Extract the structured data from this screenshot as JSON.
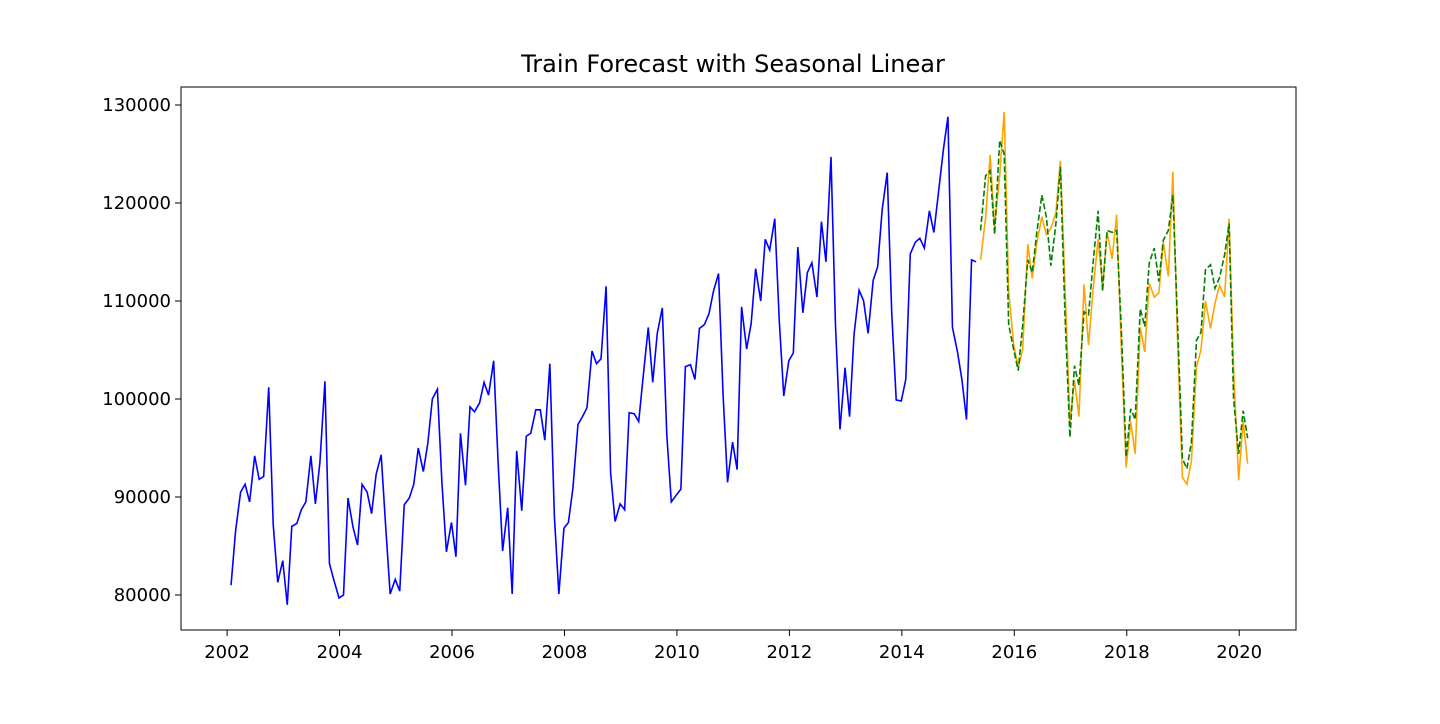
{
  "chart_data": {
    "type": "line",
    "title": "Train Forecast with Seasonal Linear",
    "xlim": [
      2001.18,
      2021.01
    ],
    "xticks": [
      2002,
      2004,
      2006,
      2008,
      2010,
      2012,
      2014,
      2016,
      2018,
      2020
    ],
    "ylim": [
      76429,
      131837
    ],
    "yticks": [
      80000,
      90000,
      100000,
      110000,
      120000,
      130000
    ],
    "series": [
      {
        "color": "#0000ff",
        "linestyle": "solid",
        "x": [
          2002.07,
          2002.15,
          2002.24,
          2002.32,
          2002.4,
          2002.49,
          2002.57,
          2002.65,
          2002.74,
          2002.82,
          2002.9,
          2002.99,
          2003.07,
          2003.15,
          2003.24,
          2003.32,
          2003.4,
          2003.49,
          2003.57,
          2003.65,
          2003.74,
          2003.82,
          2003.9,
          2003.99,
          2004.07,
          2004.15,
          2004.24,
          2004.32,
          2004.4,
          2004.49,
          2004.57,
          2004.65,
          2004.74,
          2004.82,
          2004.9,
          2004.99,
          2005.07,
          2005.15,
          2005.24,
          2005.32,
          2005.4,
          2005.49,
          2005.57,
          2005.65,
          2005.74,
          2005.82,
          2005.9,
          2005.99,
          2006.07,
          2006.15,
          2006.24,
          2006.32,
          2006.4,
          2006.49,
          2006.57,
          2006.65,
          2006.74,
          2006.82,
          2006.9,
          2006.99,
          2007.07,
          2007.15,
          2007.24,
          2007.32,
          2007.4,
          2007.49,
          2007.57,
          2007.65,
          2007.74,
          2007.82,
          2007.9,
          2007.99,
          2008.07,
          2008.15,
          2008.24,
          2008.32,
          2008.4,
          2008.49,
          2008.57,
          2008.65,
          2008.74,
          2008.82,
          2008.9,
          2008.99,
          2009.07,
          2009.15,
          2009.24,
          2009.32,
          2009.4,
          2009.49,
          2009.57,
          2009.65,
          2009.74,
          2009.82,
          2009.9,
          2009.99,
          2010.07,
          2010.15,
          2010.24,
          2010.32,
          2010.4,
          2010.49,
          2010.57,
          2010.65,
          2010.74,
          2010.82,
          2010.9,
          2010.99,
          2011.07,
          2011.15,
          2011.24,
          2011.32,
          2011.4,
          2011.49,
          2011.57,
          2011.65,
          2011.74,
          2011.82,
          2011.9,
          2011.99,
          2012.07,
          2012.15,
          2012.24,
          2012.32,
          2012.4,
          2012.49,
          2012.57,
          2012.65,
          2012.74,
          2012.82,
          2012.9,
          2012.99,
          2013.07,
          2013.15,
          2013.24,
          2013.32,
          2013.4,
          2013.49,
          2013.57,
          2013.65,
          2013.74,
          2013.82,
          2013.9,
          2013.99,
          2014.07,
          2014.15,
          2014.24,
          2014.32,
          2014.4,
          2014.49,
          2014.57,
          2014.65,
          2014.74,
          2014.82,
          2014.9,
          2014.99,
          2015.07,
          2015.15,
          2015.24,
          2015.32
        ],
        "values": [
          81000,
          86500,
          90500,
          91300,
          89500,
          94200,
          91800,
          92100,
          101200,
          87200,
          81300,
          83500,
          79000,
          87000,
          87300,
          88700,
          89500,
          94200,
          89300,
          93500,
          101800,
          83200,
          81500,
          79700,
          80000,
          89900,
          86900,
          85100,
          91300,
          90500,
          88300,
          92300,
          94300,
          87000,
          80100,
          81600,
          80400,
          89200,
          89900,
          91300,
          95000,
          92600,
          95500,
          100000,
          101000,
          91500,
          84400,
          87400,
          83900,
          96500,
          91200,
          99200,
          98700,
          99600,
          101700,
          100400,
          103900,
          93500,
          84500,
          88900,
          80100,
          94700,
          88600,
          96200,
          96500,
          98900,
          98900,
          95800,
          103600,
          88100,
          80100,
          86800,
          87400,
          90900,
          97400,
          98200,
          99100,
          104900,
          103600,
          104100,
          111500,
          92500,
          87500,
          89300,
          88700,
          98600,
          98500,
          97700,
          102300,
          107300,
          101700,
          106700,
          109300,
          96300,
          89500,
          90200,
          90800,
          103300,
          103500,
          102000,
          107200,
          107600,
          108700,
          111000,
          112800,
          100500,
          91500,
          95600,
          92800,
          109400,
          105100,
          107700,
          113300,
          110000,
          116300,
          115200,
          118400,
          108000,
          100300,
          103900,
          104700,
          115500,
          108800,
          112900,
          113900,
          110400,
          118100,
          114000,
          124700,
          107500,
          96900,
          103200,
          98200,
          106600,
          111100,
          110000,
          106700,
          112100,
          113500,
          119300,
          123100,
          108800,
          99900,
          99800,
          102000,
          114800,
          116000,
          116400,
          115400,
          119200,
          117000,
          121000,
          125500,
          128800,
          107300,
          104800,
          101900,
          97900,
          114200,
          114000
        ]
      },
      {
        "color": "#ffa500",
        "linestyle": "solid",
        "x": [
          2015.4,
          2015.49,
          2015.57,
          2015.65,
          2015.74,
          2015.82,
          2015.9,
          2015.99,
          2016.07,
          2016.15,
          2016.24,
          2016.32,
          2016.4,
          2016.49,
          2016.57,
          2016.65,
          2016.74,
          2016.82,
          2016.9,
          2016.99,
          2017.07,
          2017.15,
          2017.24,
          2017.32,
          2017.4,
          2017.49,
          2017.57,
          2017.65,
          2017.74,
          2017.82,
          2017.9,
          2017.99,
          2018.07,
          2018.15,
          2018.24,
          2018.32,
          2018.4,
          2018.49,
          2018.57,
          2018.65,
          2018.74,
          2018.82,
          2018.9,
          2018.99,
          2019.07,
          2019.15,
          2019.24,
          2019.32,
          2019.4,
          2019.49,
          2019.57,
          2019.65,
          2019.74,
          2019.82,
          2019.9,
          2019.99,
          2020.07,
          2020.15
        ],
        "values": [
          114200,
          118500,
          124900,
          117500,
          122800,
          129300,
          111000,
          105500,
          103200,
          105100,
          115800,
          112300,
          115900,
          118600,
          116800,
          117400,
          119000,
          124300,
          111700,
          97600,
          101900,
          98200,
          111700,
          105500,
          111100,
          116300,
          111500,
          117000,
          114300,
          118800,
          105700,
          93000,
          97700,
          94400,
          107300,
          104800,
          111800,
          110400,
          110800,
          116000,
          112500,
          123200,
          106600,
          92000,
          91300,
          93700,
          103300,
          105000,
          110000,
          107200,
          109800,
          111600,
          110400,
          118400,
          103000,
          91700,
          97800,
          93400
        ]
      },
      {
        "color": "#008000",
        "linestyle": "dashed",
        "x": [
          2015.4,
          2015.49,
          2015.57,
          2015.65,
          2015.74,
          2015.82,
          2015.9,
          2015.99,
          2016.07,
          2016.15,
          2016.24,
          2016.32,
          2016.4,
          2016.49,
          2016.57,
          2016.65,
          2016.74,
          2016.82,
          2016.9,
          2016.99,
          2017.07,
          2017.15,
          2017.24,
          2017.32,
          2017.4,
          2017.49,
          2017.57,
          2017.65,
          2017.74,
          2017.82,
          2017.9,
          2017.99,
          2018.07,
          2018.15,
          2018.24,
          2018.32,
          2018.4,
          2018.49,
          2018.57,
          2018.65,
          2018.74,
          2018.82,
          2018.9,
          2018.99,
          2019.07,
          2019.15,
          2019.24,
          2019.32,
          2019.4,
          2019.49,
          2019.57,
          2019.65,
          2019.74,
          2019.82,
          2019.9,
          2019.99,
          2020.07,
          2020.15
        ],
        "values": [
          117200,
          122800,
          123300,
          116800,
          126400,
          125000,
          107600,
          105000,
          102900,
          107600,
          114200,
          112900,
          117000,
          120800,
          118600,
          113600,
          117900,
          123700,
          108800,
          96100,
          103400,
          101400,
          108900,
          108600,
          113800,
          119200,
          111000,
          117200,
          117000,
          117200,
          107600,
          94100,
          99000,
          97900,
          109200,
          107400,
          113900,
          115400,
          112000,
          116200,
          117200,
          120800,
          108300,
          93900,
          92900,
          95600,
          106000,
          106800,
          113200,
          113700,
          111300,
          112400,
          114700,
          117900,
          100000,
          94400,
          98800,
          96000
        ]
      }
    ]
  }
}
